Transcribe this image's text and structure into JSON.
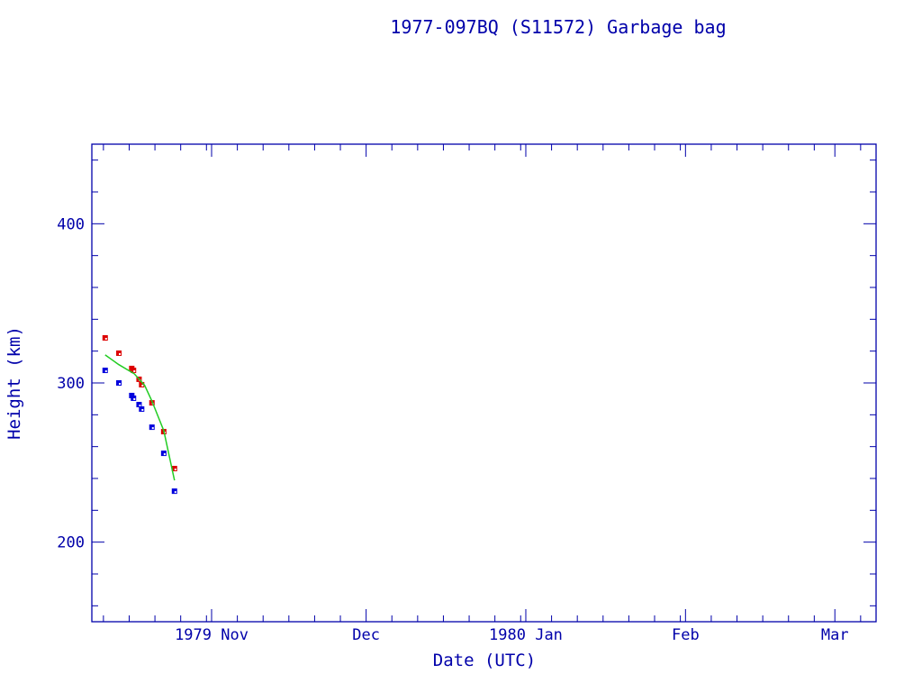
{
  "chart_data": {
    "type": "scatter",
    "title": "1977-097BQ (S11572) Garbage bag",
    "xlabel": "Date (UTC)",
    "ylabel": "Height (km)",
    "xlim": [
      "1979-10-08T18:00",
      "1980-03-09T00:00"
    ],
    "ylim": [
      150,
      450
    ],
    "yticks": [
      200,
      300,
      400
    ],
    "xticks": [
      {
        "date": "1979-11-01",
        "label": "1979 Nov"
      },
      {
        "date": "1979-12-01",
        "label": "Dec"
      },
      {
        "date": "1980-01-01",
        "label": "1980 Jan"
      },
      {
        "date": "1980-02-01",
        "label": "Feb"
      },
      {
        "date": "1980-03-01",
        "label": "Mar"
      }
    ],
    "grid": false,
    "colors": {
      "axis": "#0000aa",
      "apogee": "#dd0000",
      "perigee": "#0000dd",
      "fit": "#22cc22"
    },
    "series": [
      {
        "color": "#dd0000",
        "marker": "square",
        "points": [
          [
            "1979-10-11T08:00",
            328.3
          ],
          [
            "1979-10-14T00:00",
            318.7
          ],
          [
            "1979-10-16T12:00",
            309.1
          ],
          [
            "1979-10-16T20:00",
            307.9
          ],
          [
            "1979-10-17T22:00",
            302.3
          ],
          [
            "1979-10-18T10:00",
            298.9
          ],
          [
            "1979-10-20T10:00",
            287.5
          ],
          [
            "1979-10-22T17:00",
            269.4
          ],
          [
            "1979-10-24T19:00",
            246.2
          ]
        ]
      },
      {
        "color": "#0000dd",
        "marker": "square",
        "points": [
          [
            "1979-10-11T08:00",
            307.9
          ],
          [
            "1979-10-14T00:00",
            300.0
          ],
          [
            "1979-10-16T12:00",
            292.1
          ],
          [
            "1979-10-16T20:00",
            290.4
          ],
          [
            "1979-10-17T22:00",
            286.4
          ],
          [
            "1979-10-18T10:00",
            283.6
          ],
          [
            "1979-10-20T10:00",
            272.2
          ],
          [
            "1979-10-22T17:00",
            255.8
          ],
          [
            "1979-10-24T19:00",
            232.0
          ]
        ]
      },
      {
        "color": "#22cc22",
        "marker": "line",
        "points": [
          [
            "1979-10-11T08:00",
            317.6
          ],
          [
            "1979-10-14T00:00",
            311.5
          ],
          [
            "1979-10-17T00:00",
            305.7
          ],
          [
            "1979-10-19T00:00",
            298.5
          ],
          [
            "1979-10-20T10:00",
            288.7
          ],
          [
            "1979-10-22T17:00",
            270.0
          ],
          [
            "1979-10-24T19:00",
            238.8
          ]
        ]
      }
    ]
  }
}
